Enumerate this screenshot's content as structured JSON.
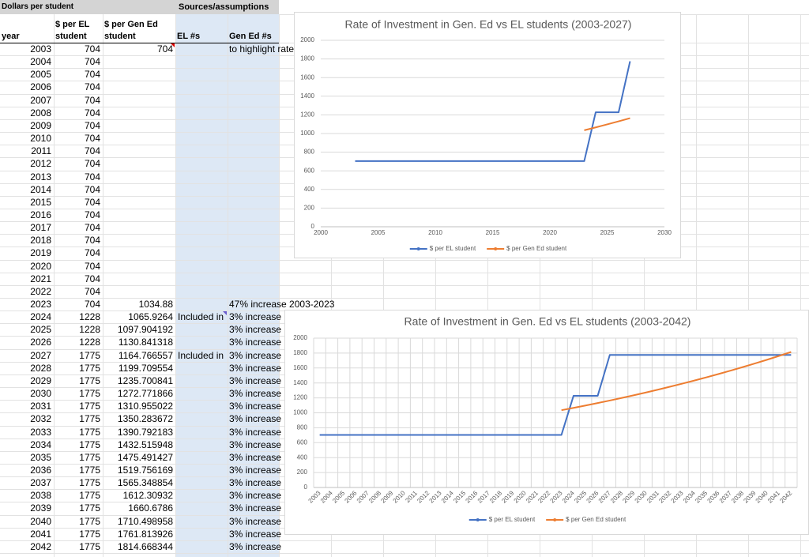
{
  "sheet": {
    "title_left": "Dollars per student",
    "title_right": "Sources/assumptions",
    "columns": [
      "year",
      "$ per EL student",
      "$ per Gen Ed student",
      "EL #s",
      "Gen Ed #s"
    ],
    "rows": [
      [
        2003,
        704,
        704,
        null,
        "to highlight rate"
      ],
      [
        2004,
        704,
        null,
        null,
        null
      ],
      [
        2005,
        704,
        null,
        null,
        null
      ],
      [
        2006,
        704,
        null,
        null,
        null
      ],
      [
        2007,
        704,
        null,
        null,
        null
      ],
      [
        2008,
        704,
        null,
        null,
        null
      ],
      [
        2009,
        704,
        null,
        null,
        null
      ],
      [
        2010,
        704,
        null,
        null,
        null
      ],
      [
        2011,
        704,
        null,
        null,
        null
      ],
      [
        2012,
        704,
        null,
        null,
        null
      ],
      [
        2013,
        704,
        null,
        null,
        null
      ],
      [
        2014,
        704,
        null,
        null,
        null
      ],
      [
        2015,
        704,
        null,
        null,
        null
      ],
      [
        2016,
        704,
        null,
        null,
        null
      ],
      [
        2017,
        704,
        null,
        null,
        null
      ],
      [
        2018,
        704,
        null,
        null,
        null
      ],
      [
        2019,
        704,
        null,
        null,
        null
      ],
      [
        2020,
        704,
        null,
        null,
        null
      ],
      [
        2021,
        704,
        null,
        null,
        null
      ],
      [
        2022,
        704,
        null,
        null,
        null
      ],
      [
        2023,
        704,
        1034.88,
        null,
        "47% increase 2003-2023"
      ],
      [
        2024,
        1228,
        1065.9264,
        "Included in",
        "3% increase"
      ],
      [
        2025,
        1228,
        1097.904192,
        null,
        "3% increase"
      ],
      [
        2026,
        1228,
        1130.841318,
        null,
        "3% increase"
      ],
      [
        2027,
        1775,
        1164.766557,
        "Included in",
        "3% increase"
      ],
      [
        2028,
        1775,
        1199.709554,
        null,
        "3% increase"
      ],
      [
        2029,
        1775,
        1235.700841,
        null,
        "3% increase"
      ],
      [
        2030,
        1775,
        1272.771866,
        null,
        "3% increase"
      ],
      [
        2031,
        1775,
        1310.955022,
        null,
        "3% increase"
      ],
      [
        2032,
        1775,
        1350.283672,
        null,
        "3% increase"
      ],
      [
        2033,
        1775,
        1390.792183,
        null,
        "3% increase"
      ],
      [
        2034,
        1775,
        1432.515948,
        null,
        "3% increase"
      ],
      [
        2035,
        1775,
        1475.491427,
        null,
        "3% increase"
      ],
      [
        2036,
        1775,
        1519.756169,
        null,
        "3% increase"
      ],
      [
        2037,
        1775,
        1565.348854,
        null,
        "3% increase"
      ],
      [
        2038,
        1775,
        1612.30932,
        null,
        "3% increase"
      ],
      [
        2039,
        1775,
        1660.6786,
        null,
        "3% increase"
      ],
      [
        2040,
        1775,
        1710.498958,
        null,
        "3% increase"
      ],
      [
        2041,
        1775,
        1761.813926,
        null,
        "3% increase"
      ],
      [
        2042,
        1775,
        1814.668344,
        null,
        "3% increase"
      ]
    ]
  },
  "chart_data": [
    {
      "type": "line",
      "title": "Rate of Investment in Gen. Ed vs EL students (2003-2027)",
      "x": [
        2003,
        2004,
        2005,
        2006,
        2007,
        2008,
        2009,
        2010,
        2011,
        2012,
        2013,
        2014,
        2015,
        2016,
        2017,
        2018,
        2019,
        2020,
        2021,
        2022,
        2023,
        2024,
        2025,
        2026,
        2027
      ],
      "xlim": [
        2000,
        2030
      ],
      "xticks": [
        2000,
        2005,
        2010,
        2015,
        2020,
        2025,
        2030
      ],
      "ylim": [
        0,
        2000
      ],
      "yticks": [
        0,
        200,
        400,
        600,
        800,
        1000,
        1200,
        1400,
        1600,
        1800,
        2000
      ],
      "grid": true,
      "x_grid": false,
      "legend": "bottom",
      "series": [
        {
          "name": "$ per EL student",
          "color": "#4472c4",
          "values": [
            704,
            704,
            704,
            704,
            704,
            704,
            704,
            704,
            704,
            704,
            704,
            704,
            704,
            704,
            704,
            704,
            704,
            704,
            704,
            704,
            704,
            1228,
            1228,
            1228,
            1775
          ]
        },
        {
          "name": "$ per Gen Ed student",
          "color": "#ed7d31",
          "values": [
            null,
            null,
            null,
            null,
            null,
            null,
            null,
            null,
            null,
            null,
            null,
            null,
            null,
            null,
            null,
            null,
            null,
            null,
            null,
            null,
            1034.88,
            1065.9264,
            1097.904192,
            1130.841318,
            1164.766557
          ]
        }
      ]
    },
    {
      "type": "line",
      "title": "Rate of Investment in Gen. Ed vs EL students (2003-2042)",
      "categories": [
        "2003",
        "2004",
        "2005",
        "2006",
        "2007",
        "2008",
        "2009",
        "2010",
        "2011",
        "2012",
        "2013",
        "2014",
        "2015",
        "2016",
        "2017",
        "2018",
        "2019",
        "2020",
        "2021",
        "2022",
        "2023",
        "2024",
        "2025",
        "2026",
        "2027",
        "2028",
        "2029",
        "2030",
        "2031",
        "2032",
        "2033",
        "2034",
        "2035",
        "2036",
        "2037",
        "2038",
        "2039",
        "2040",
        "2041",
        "2042"
      ],
      "ylim": [
        0,
        2000
      ],
      "yticks": [
        0,
        200,
        400,
        600,
        800,
        1000,
        1200,
        1400,
        1600,
        1800,
        2000
      ],
      "grid": true,
      "x_grid": true,
      "legend": "bottom",
      "series": [
        {
          "name": "$ per EL student",
          "color": "#4472c4",
          "values": [
            704,
            704,
            704,
            704,
            704,
            704,
            704,
            704,
            704,
            704,
            704,
            704,
            704,
            704,
            704,
            704,
            704,
            704,
            704,
            704,
            704,
            1228,
            1228,
            1228,
            1775,
            1775,
            1775,
            1775,
            1775,
            1775,
            1775,
            1775,
            1775,
            1775,
            1775,
            1775,
            1775,
            1775,
            1775,
            1775
          ]
        },
        {
          "name": "$ per Gen Ed student",
          "color": "#ed7d31",
          "values": [
            null,
            null,
            null,
            null,
            null,
            null,
            null,
            null,
            null,
            null,
            null,
            null,
            null,
            null,
            null,
            null,
            null,
            null,
            null,
            null,
            1034.88,
            1065.9264,
            1097.904192,
            1130.841318,
            1164.766557,
            1199.709554,
            1235.700841,
            1272.771866,
            1310.955022,
            1350.283672,
            1390.792183,
            1432.515948,
            1475.491427,
            1519.756169,
            1565.348854,
            1612.30932,
            1660.6786,
            1710.498958,
            1761.813926,
            1814.668344
          ]
        }
      ]
    }
  ]
}
